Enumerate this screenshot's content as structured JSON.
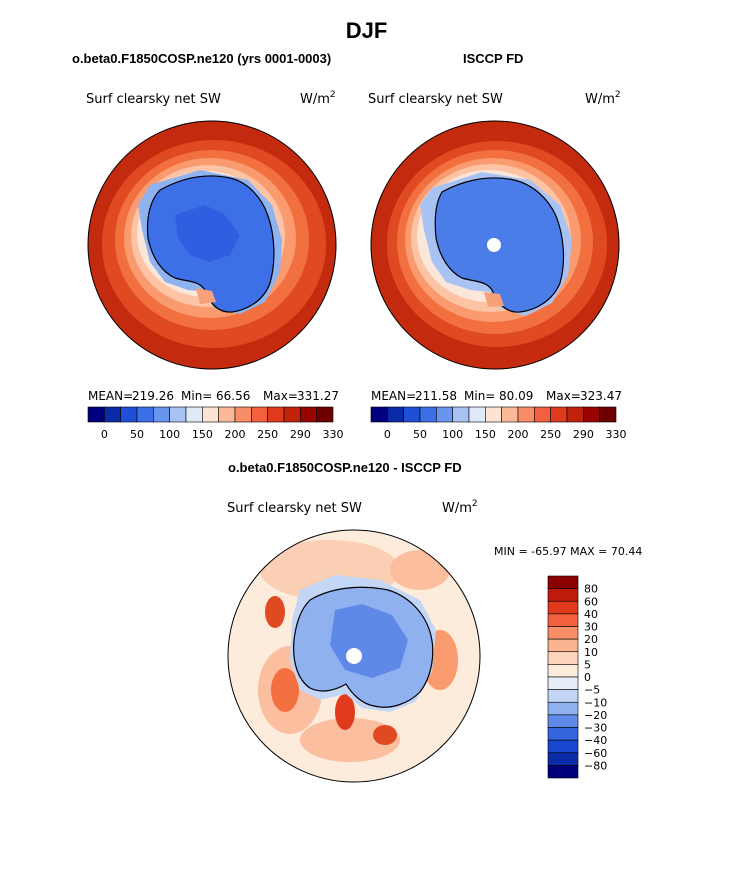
{
  "figure": {
    "title": "DJF"
  },
  "chart_data": [
    {
      "type": "heatmap",
      "projection": "south-polar-stereographic",
      "case_title": "o.beta0.F1850COSP.ne120 (yrs 0001-0003)",
      "variable": "Surf clearsky net SW",
      "units_base": "W/m",
      "units_exp": "2",
      "stats": {
        "mean_label": "MEAN=",
        "mean": "219.26",
        "min_label": "Min=",
        "min": "66.56",
        "max_label": "Max=",
        "max": "331.27"
      },
      "colorbar": {
        "levels": [
          25,
          50,
          75,
          100,
          125,
          150,
          175,
          200,
          225,
          250,
          270,
          290,
          310,
          330
        ],
        "labels": [
          "0",
          "50",
          "100",
          "150",
          "200",
          "250",
          "290",
          "330"
        ],
        "colors": [
          "#00007f",
          "#0a2aa8",
          "#1f4fd6",
          "#3c6fe6",
          "#6a95ef",
          "#a8c3f3",
          "#dfe9f7",
          "#fde3d4",
          "#fbb999",
          "#f88d68",
          "#f2603d",
          "#e03a1c",
          "#c0220b",
          "#980500",
          "#6e0000"
        ]
      }
    },
    {
      "type": "heatmap",
      "projection": "south-polar-stereographic",
      "case_title": "ISCCP FD",
      "variable": "Surf clearsky net SW",
      "units_base": "W/m",
      "units_exp": "2",
      "stats": {
        "mean_label": "MEAN=",
        "mean": "211.58",
        "min_label": "Min=",
        "min": "80.09",
        "max_label": "Max=",
        "max": "323.47"
      },
      "colorbar": {
        "levels": [
          25,
          50,
          75,
          100,
          125,
          150,
          175,
          200,
          225,
          250,
          270,
          290,
          310,
          330
        ],
        "labels": [
          "0",
          "50",
          "100",
          "150",
          "200",
          "250",
          "290",
          "330"
        ],
        "colors": [
          "#00007f",
          "#0a2aa8",
          "#1f4fd6",
          "#3c6fe6",
          "#6a95ef",
          "#a8c3f3",
          "#dfe9f7",
          "#fde3d4",
          "#fbb999",
          "#f88d68",
          "#f2603d",
          "#e03a1c",
          "#c0220b",
          "#980500",
          "#6e0000"
        ]
      }
    },
    {
      "type": "heatmap",
      "projection": "south-polar-stereographic",
      "case_title": "o.beta0.F1850COSP.ne120 - ISCCP FD",
      "variable": "Surf clearsky net SW",
      "units_base": "W/m",
      "units_exp": "2",
      "stats": {
        "text": "MIN = -65.97 MAX =  70.44",
        "min": -65.97,
        "max": 70.44
      },
      "colorbar": {
        "orientation": "vertical",
        "labels": [
          "80",
          "60",
          "40",
          "30",
          "20",
          "10",
          "5",
          "0",
          "−5",
          "−10",
          "−20",
          "−30",
          "−40",
          "−60",
          "−80"
        ],
        "colors": [
          "#8b0000",
          "#bf1a0a",
          "#e03a1c",
          "#f2603d",
          "#f88d68",
          "#fbb48f",
          "#fdd5bd",
          "#fdebdc",
          "#e7eef9",
          "#c3d6f5",
          "#8fb1f0",
          "#5f89e8",
          "#3566de",
          "#1a47d0",
          "#0a2aa8",
          "#00007f"
        ]
      }
    }
  ]
}
